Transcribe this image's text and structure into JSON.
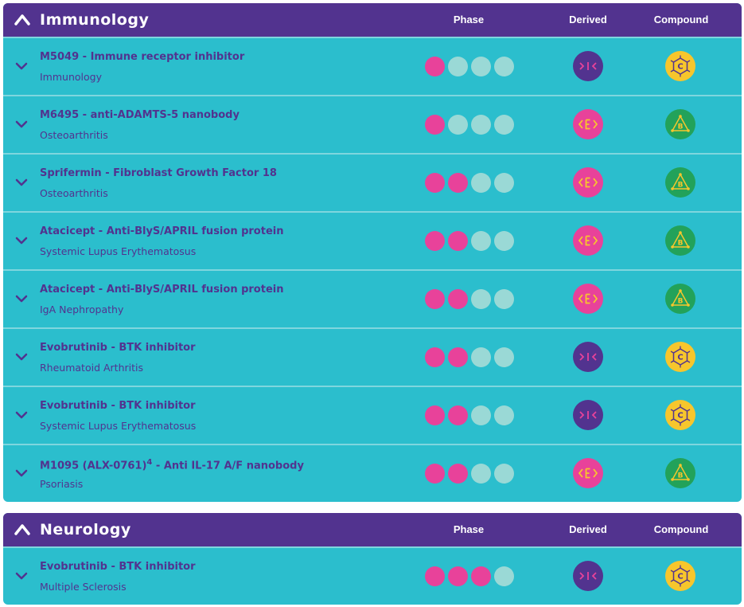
{
  "colors": {
    "header_bg": "#52338f",
    "section_bg": "#2bbecd",
    "divider": "#7fd6de",
    "phase_active": "#e8429a",
    "phase_inactive": "#9ad9d6",
    "derived_e": "#e8429a",
    "derived_x": "#52338f",
    "compound_c": "#f7c62c",
    "compound_b": "#22a25a"
  },
  "columns": {
    "phase": "Phase",
    "derived": "Derived",
    "compound": "Compound"
  },
  "sections": [
    {
      "title": "Immunology",
      "rows": [
        {
          "name": "M5049 - Immune receptor inhibitor",
          "indication": "Immunology",
          "phase": 1,
          "derived": ">|<",
          "compound": "C"
        },
        {
          "name": "M6495 - anti-ADAMTS-5 nanobody",
          "indication": "Osteoarthritis",
          "phase": 1,
          "derived": "<E>",
          "compound": "B"
        },
        {
          "name": "Sprifermin - Fibroblast Growth Factor 18",
          "indication": "Osteoarthritis",
          "phase": 2,
          "derived": "<E>",
          "compound": "B"
        },
        {
          "name": "Atacicept - Anti-BlyS/APRIL fusion protein",
          "indication": "Systemic Lupus Erythematosus",
          "phase": 2,
          "derived": "<E>",
          "compound": "B"
        },
        {
          "name": "Atacicept - Anti-BlyS/APRIL fusion protein",
          "indication": "IgA Nephropathy",
          "phase": 2,
          "derived": "<E>",
          "compound": "B"
        },
        {
          "name": "Evobrutinib - BTK inhibitor",
          "indication": "Rheumatoid Arthritis",
          "phase": 2,
          "derived": ">|<",
          "compound": "C"
        },
        {
          "name": "Evobrutinib - BTK inhibitor",
          "indication": "Systemic Lupus Erythematosus",
          "phase": 2,
          "derived": ">|<",
          "compound": "C"
        },
        {
          "name": "M1095 (ALX-0761)",
          "name_sup": "4",
          "name_suffix": " - Anti IL-17 A/F nanobody",
          "indication": "Psoriasis",
          "phase": 2,
          "derived": "<E>",
          "compound": "B"
        }
      ]
    },
    {
      "title": "Neurology",
      "rows": [
        {
          "name": "Evobrutinib - BTK inhibitor",
          "indication": "Multiple Sclerosis",
          "phase": 3,
          "derived": ">|<",
          "compound": "C"
        }
      ]
    }
  ]
}
